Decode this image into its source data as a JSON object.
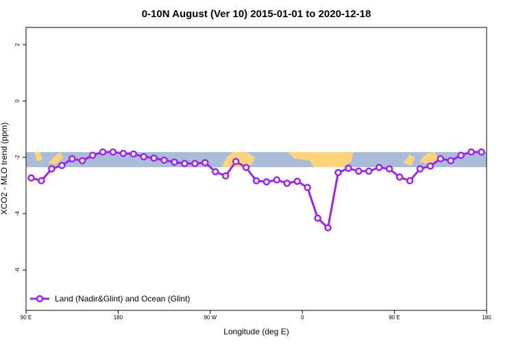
{
  "chart_data": {
    "type": "line",
    "title": "0-10N August (Ver 10)   2015-01-01 to 2020-12-18",
    "x_label": "Longitude (deg E)",
    "y_label": "XCO2 - MLO trend (ppm)",
    "x": [
      95,
      105,
      115,
      125,
      135,
      145,
      155,
      165,
      175,
      185,
      195,
      205,
      215,
      225,
      235,
      245,
      255,
      265,
      275,
      285,
      295,
      305,
      315,
      325,
      335,
      345,
      355,
      365,
      375,
      385,
      395,
      405,
      415,
      425,
      435,
      445,
      455,
      465,
      475,
      485,
      495,
      505,
      515,
      525,
      535
    ],
    "series": [
      {
        "name": "Land (Nadir&Glint) and Ocean (Glint)",
        "color": "#a020f0",
        "values": [
          -2.73,
          -2.83,
          -2.41,
          -2.29,
          -2.05,
          -2.12,
          -1.93,
          -1.81,
          -1.81,
          -1.86,
          -1.88,
          -1.98,
          -2.03,
          -2.1,
          -2.17,
          -2.22,
          -2.22,
          -2.19,
          -2.51,
          -2.66,
          -2.15,
          -2.36,
          -2.83,
          -2.87,
          -2.8,
          -2.92,
          -2.85,
          -3.07,
          -4.16,
          -4.5,
          -2.54,
          -2.39,
          -2.49,
          -2.49,
          -2.36,
          -2.41,
          -2.7,
          -2.83,
          -2.41,
          -2.31,
          -2.05,
          -2.12,
          -1.93,
          -1.81,
          -1.81
        ]
      }
    ],
    "xlim": [
      90,
      540
    ],
    "ylim": [
      -7.43,
      2.61
    ],
    "xticks": [
      {
        "value": 90,
        "label": "90 E"
      },
      180,
      {
        "value": 270,
        "label": "90 W"
      },
      {
        "value": 360,
        "label": "0"
      },
      {
        "value": 450,
        "label": "90 E"
      },
      {
        "value": 540,
        "label": "180"
      }
    ],
    "yticks": [
      2,
      0,
      -2,
      -4,
      -6
    ],
    "legend": "bottom-left"
  }
}
